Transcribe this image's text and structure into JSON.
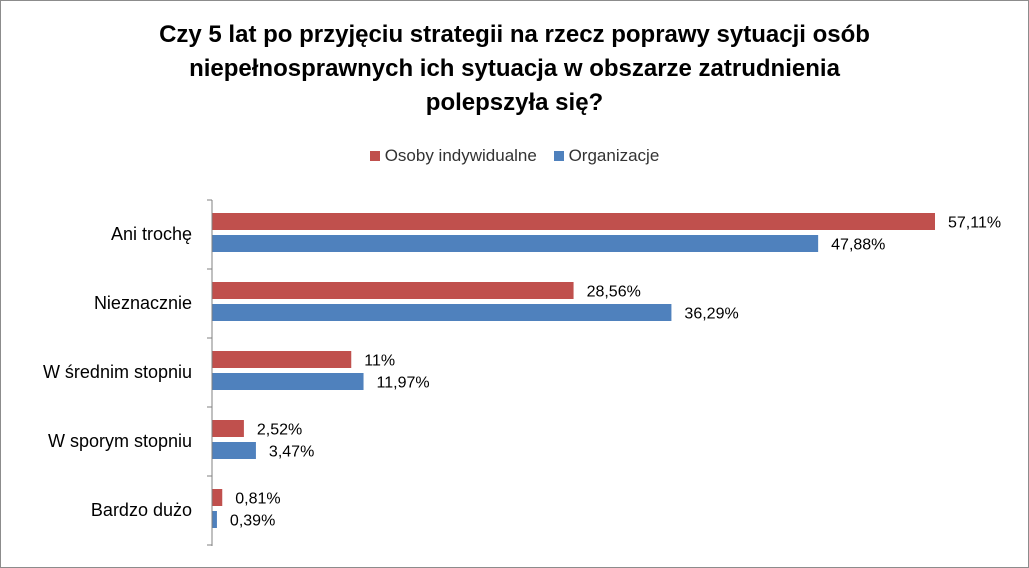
{
  "chart_data": {
    "type": "bar",
    "orientation": "horizontal",
    "title_lines": [
      "Czy 5 lat po przyjęciu strategii na rzecz poprawy sytuacji osób",
      "niepełnosprawnych ich sytuacja w obszarze zatrudnienia",
      "polepszyła się?"
    ],
    "legend_position": "top",
    "grid": false,
    "categories": [
      "Ani trochę",
      "Nieznacznie",
      "W średnim stopniu",
      "W sporym stopniu",
      "Bardzo dużo"
    ],
    "series": [
      {
        "name": "Osoby indywidualne",
        "color": "#c0504d",
        "values": [
          57.11,
          28.56,
          11,
          2.52,
          0.81
        ],
        "labels": [
          "57,11%",
          "28,56%",
          "11%",
          "2,52%",
          "0,81%"
        ]
      },
      {
        "name": "Organizacje",
        "color": "#4f81bd",
        "values": [
          47.88,
          36.29,
          11.97,
          3.47,
          0.39
        ],
        "labels": [
          "47,88%",
          "36,29%",
          "11,97%",
          "3,47%",
          "0,39%"
        ]
      }
    ],
    "xlim": [
      0,
      60
    ],
    "axis_color": "#808080"
  }
}
